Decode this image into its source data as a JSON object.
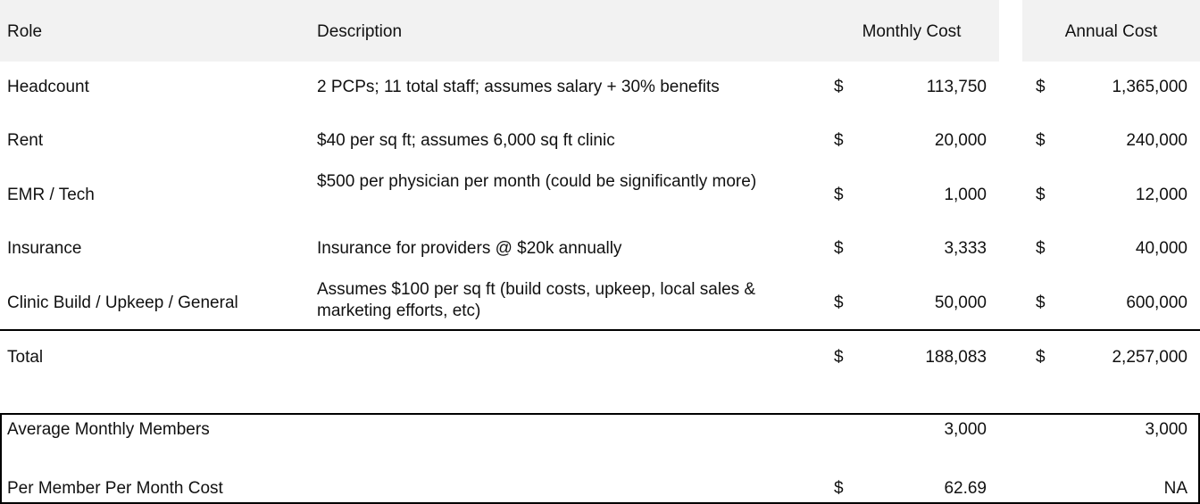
{
  "columns": {
    "role": "Role",
    "description": "Description",
    "monthly": "Monthly Cost",
    "annual": "Annual Cost"
  },
  "currency_symbol": "$",
  "rows": [
    {
      "role": "Headcount",
      "description": "2 PCPs; 11 total staff; assumes salary + 30% benefits",
      "monthly": "113,750",
      "annual": "1,365,000"
    },
    {
      "role": "Rent",
      "description": "$40 per sq ft; assumes 6,000 sq ft clinic",
      "monthly": "20,000",
      "annual": "240,000"
    },
    {
      "role": "EMR / Tech",
      "description": "$500 per physician per month (could be significantly more)",
      "monthly": "1,000",
      "annual": "12,000"
    },
    {
      "role": "Insurance",
      "description": "Insurance for providers @ $20k annually",
      "monthly": "3,333",
      "annual": "40,000"
    },
    {
      "role": "Clinic Build / Upkeep / General",
      "description": "Assumes $100 per sq ft (build costs, upkeep, local sales & marketing efforts, etc)",
      "monthly": "50,000",
      "annual": "600,000"
    }
  ],
  "total": {
    "label": "Total",
    "monthly": "188,083",
    "annual": "2,257,000"
  },
  "summary": {
    "members": {
      "label": "Average Monthly Members",
      "monthly": "3,000",
      "annual": "3,000"
    },
    "pmpm": {
      "label": "Per Member Per Month Cost",
      "monthly": "62.69",
      "annual": "NA"
    }
  },
  "colors": {
    "header_bg": "#f2f2f2",
    "border": "#000000",
    "text": "#111111"
  }
}
